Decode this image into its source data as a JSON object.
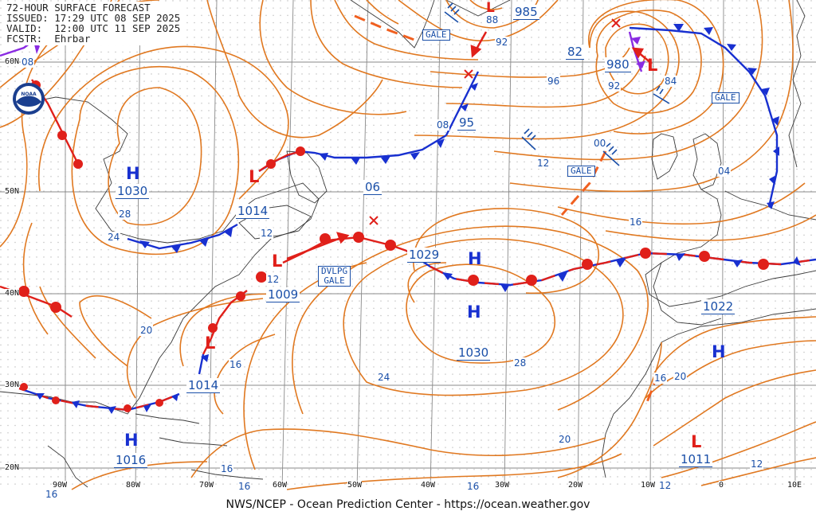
{
  "header": {
    "title": "72-HOUR SURFACE FORECAST",
    "issued": "ISSUED: 17:29 UTC 08 SEP 2025",
    "valid": "VALID:  12:00 UTC 11 SEP 2025",
    "forecaster": "FCSTR:  Ehrbar"
  },
  "logo_text": "NOAA",
  "footer": "NWS/NCEP - Ocean Prediction Center - https://ocean.weather.gov",
  "lat_labels": [
    "60N",
    "50N",
    "40N",
    "30N",
    "20N"
  ],
  "lon_labels": [
    "90W",
    "80W",
    "70W",
    "60W",
    "50W",
    "40W",
    "30W",
    "20W",
    "10W",
    "0",
    "10E"
  ],
  "colors": {
    "isobar": "#e07820",
    "warm": "#e0201a",
    "cold": "#1830d0",
    "occluded": "#8a2be2",
    "label": "#1a4fa8",
    "grid": "#8a8a8a"
  },
  "highs": [
    {
      "letter": "H",
      "value": "1030"
    },
    {
      "letter": "H",
      "value": "1016"
    },
    {
      "letter": "H",
      "value": "1029"
    },
    {
      "letter": "H",
      "value": "1030"
    },
    {
      "letter": "H",
      "value": "1022"
    }
  ],
  "lows": [
    {
      "value": "1014"
    },
    {
      "value": "1009"
    },
    {
      "value": "1014"
    },
    {
      "value": "985"
    },
    {
      "value": "980"
    },
    {
      "value": "1011"
    }
  ],
  "labels": {
    "gale": "GALE",
    "dvlpg_line1": "DVLPG",
    "dvlpg_line2": "GALE",
    "l_95": "95",
    "l_82": "82",
    "l_06": "06"
  },
  "isobar_values": [
    "08",
    "24",
    "28",
    "20",
    "16",
    "12",
    "88",
    "92",
    "08",
    "96",
    "84",
    "92",
    "00",
    "12",
    "04",
    "16",
    "16",
    "12",
    "24",
    "28",
    "20",
    "16",
    "12",
    "16",
    "20",
    "12",
    "16",
    "16",
    "28"
  ]
}
